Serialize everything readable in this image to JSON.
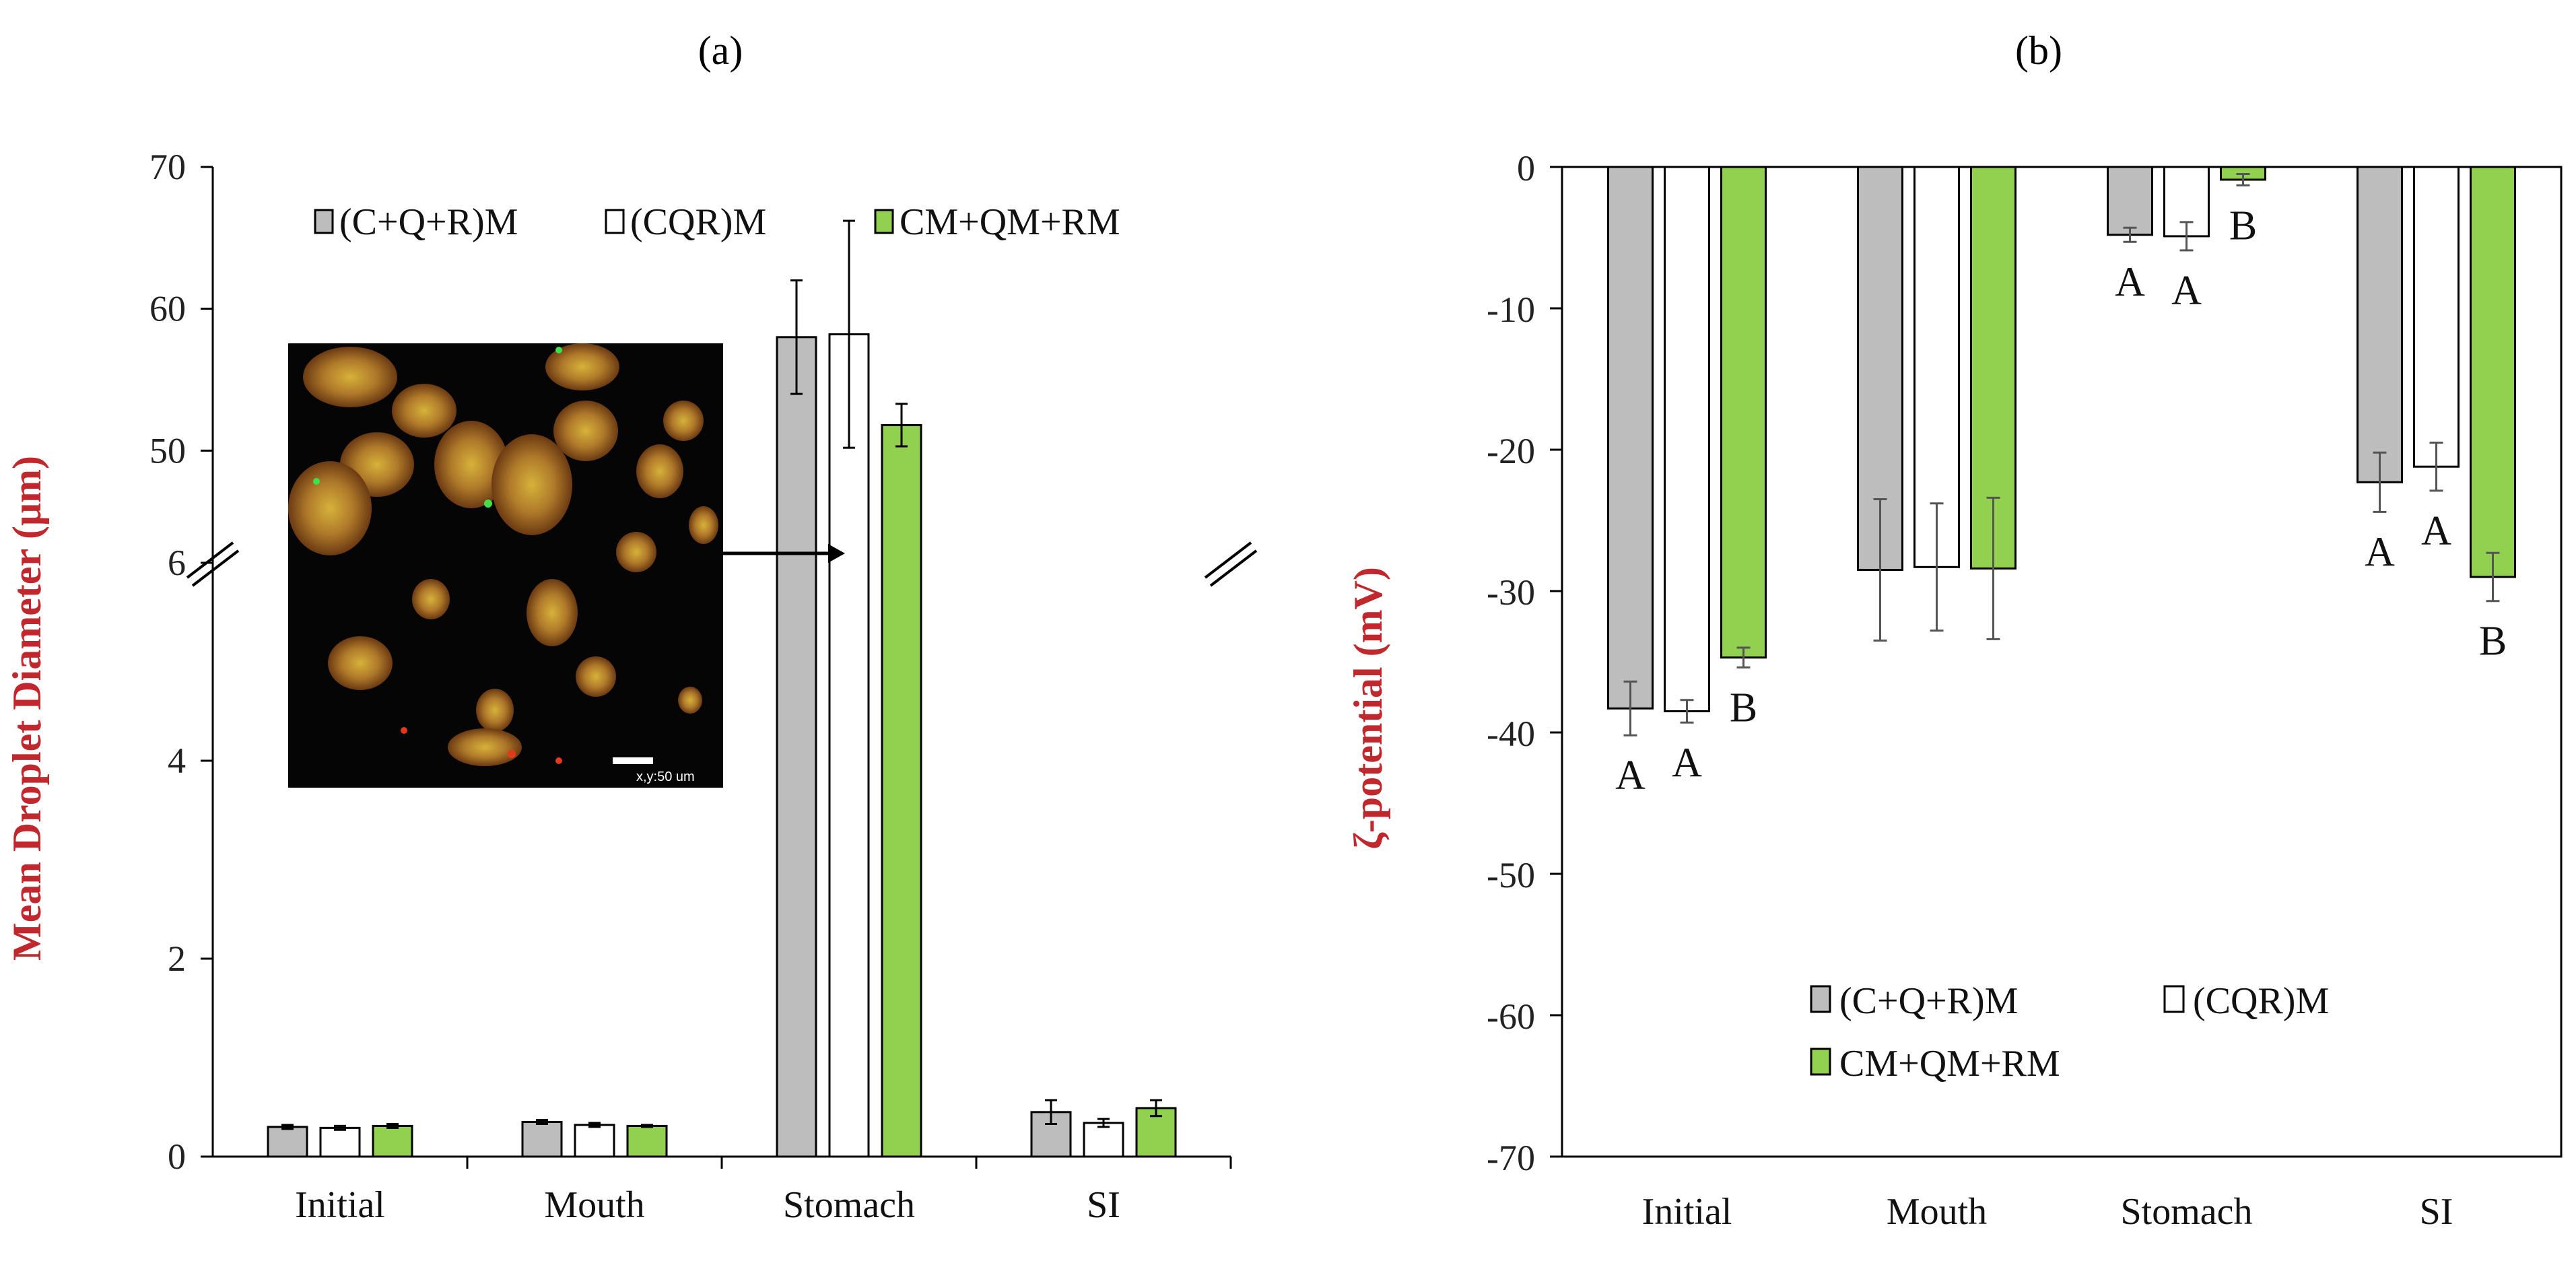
{
  "colors": {
    "series1": "#bdbdbd",
    "series2": "#ffffff",
    "series3": "#92d050",
    "ylabel": "#c0282d"
  },
  "chart_data": [
    {
      "panel": "(a)",
      "type": "bar",
      "ylabel": "Mean Droplet Diameter (μm)",
      "categories": [
        "Initial",
        "Mouth",
        "Stomach",
        "SI"
      ],
      "axis_break": {
        "lower": [
          0,
          6
        ],
        "upper": [
          40,
          70
        ]
      },
      "yticks_lower": [
        "0",
        "2",
        "4",
        "6"
      ],
      "yticks_upper": [
        "50",
        "60",
        "70"
      ],
      "legend": [
        "(C+Q+R)M",
        "(CQR)M",
        "CM+QM+RM"
      ],
      "legend_position": "top",
      "series": [
        {
          "name": "(C+Q+R)M",
          "values": [
            0.3,
            0.35,
            58.0,
            0.45
          ],
          "errors": [
            0.02,
            0.02,
            4.0,
            0.12
          ]
        },
        {
          "name": "(CQR)M",
          "values": [
            0.29,
            0.32,
            58.2,
            0.34
          ],
          "errors": [
            0.02,
            0.02,
            8.0,
            0.04
          ]
        },
        {
          "name": "CM+QM+RM",
          "values": [
            0.31,
            0.31,
            51.8,
            0.49
          ],
          "errors": [
            0.02,
            0.01,
            1.5,
            0.08
          ]
        }
      ],
      "inset": {
        "type": "micrograph",
        "scale_label": "x,y:50 um",
        "points_to": "Stomach"
      }
    },
    {
      "panel": "(b)",
      "type": "bar",
      "ylabel": "ζ-potential (mV)",
      "categories": [
        "Initial",
        "Mouth",
        "Stomach",
        "SI"
      ],
      "ylim": [
        -70,
        0
      ],
      "yticks": [
        "0",
        "-10",
        "-20",
        "-30",
        "-40",
        "-50",
        "-60",
        "-70"
      ],
      "legend": [
        "(C+Q+R)M",
        "(CQR)M",
        "CM+QM+RM"
      ],
      "legend_position": "bottom-center",
      "series": [
        {
          "name": "(C+Q+R)M",
          "values": [
            -38.3,
            -28.5,
            -4.8,
            -22.3
          ],
          "errors": [
            1.9,
            5.0,
            0.5,
            2.1
          ],
          "letters": [
            "A",
            "",
            "A",
            "A"
          ]
        },
        {
          "name": "(CQR)M",
          "values": [
            -38.5,
            -28.3,
            -4.9,
            -21.2
          ],
          "errors": [
            0.8,
            4.5,
            1.0,
            1.7
          ],
          "letters": [
            "A",
            "",
            "A",
            "A"
          ]
        },
        {
          "name": "CM+QM+RM",
          "values": [
            -34.7,
            -28.4,
            -0.9,
            -29.0
          ],
          "errors": [
            0.7,
            5.0,
            0.4,
            1.7
          ],
          "letters": [
            "B",
            "",
            "B",
            "B"
          ]
        }
      ]
    }
  ]
}
